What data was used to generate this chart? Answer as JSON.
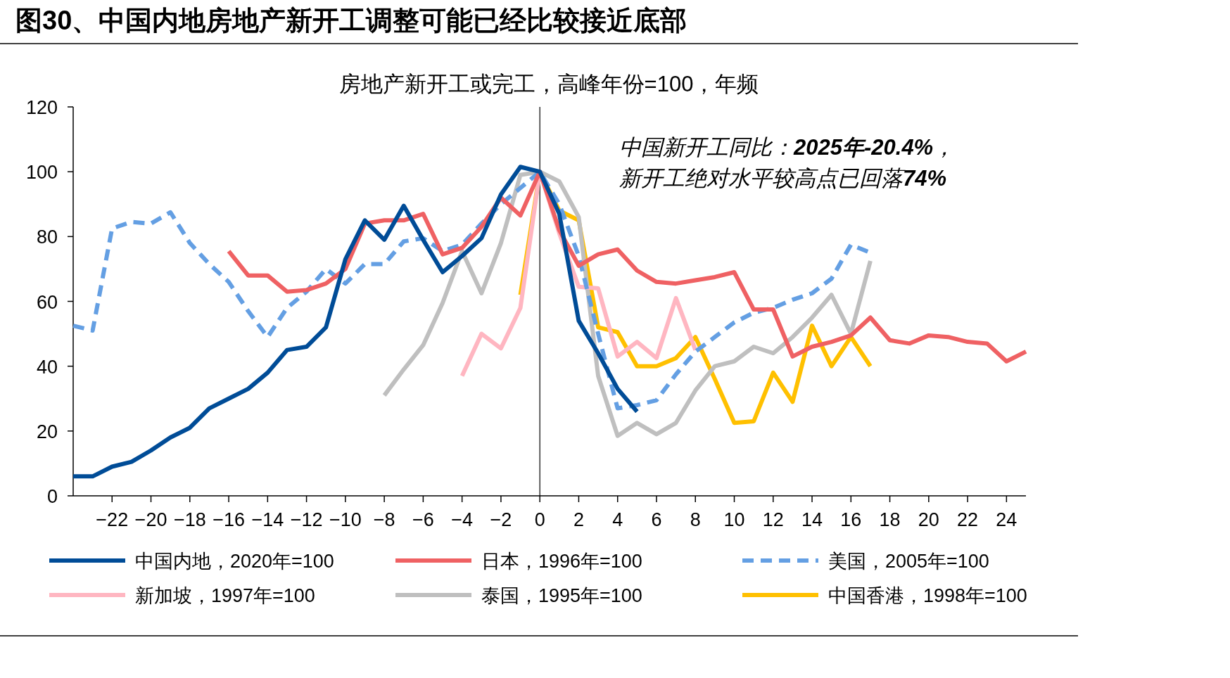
{
  "chart_data": {
    "type": "line",
    "title": "图30、中国内地房地产新开工调整可能已经比较接近底部",
    "subtitle": "房地产新开工或完工，高峰年份=100，年频",
    "annotations": [
      "中国新开工同比：**2025年-20.4%**，",
      "新开工绝对水平较高点已回落**74%**"
    ],
    "xlim": [
      -24,
      25
    ],
    "ylim": [
      0,
      120
    ],
    "yticks": [
      0,
      20,
      40,
      60,
      80,
      100,
      120
    ],
    "xticks": [
      {
        "value": -22,
        "label": "−22"
      },
      {
        "value": -20,
        "label": "−20"
      },
      {
        "value": -18,
        "label": "−18"
      },
      {
        "value": -16,
        "label": "−16"
      },
      {
        "value": -14,
        "label": "−14"
      },
      {
        "value": -12,
        "label": "−12"
      },
      {
        "value": -10,
        "label": "−10"
      },
      {
        "value": -8,
        "label": "−8"
      },
      {
        "value": -6,
        "label": "−6"
      },
      {
        "value": -4,
        "label": "−4"
      },
      {
        "value": -2,
        "label": "−2"
      },
      0,
      2,
      4,
      6,
      8,
      10,
      12,
      14,
      16,
      18,
      20,
      22,
      24
    ],
    "ref_lines": [
      {
        "axis": "x",
        "value": 0,
        "color": "#000000"
      }
    ],
    "legend": "bottom",
    "grid": false,
    "marker": "none",
    "series": [
      {
        "name": "中国内地，2020年=100",
        "color": "#004c97",
        "line_style": "solid",
        "x": [
          -24,
          -23,
          -22,
          -21,
          -20,
          -19,
          -18,
          -17,
          -16,
          -15,
          -14,
          -13,
          -12,
          -11,
          -10,
          -9,
          -8,
          -7,
          -6,
          -5,
          -4,
          -3,
          -2,
          -1,
          0,
          1,
          2,
          3,
          4,
          5
        ],
        "values": [
          6,
          6,
          9,
          10.5,
          14,
          18,
          21,
          27,
          30,
          33,
          38,
          45,
          46,
          52,
          73,
          85,
          79,
          89.5,
          79,
          69,
          74,
          79.5,
          93,
          101.5,
          100,
          87,
          54,
          44,
          33,
          26
        ]
      },
      {
        "name": "日本，1996年=100",
        "color": "#ef6163",
        "line_style": "solid",
        "x": [
          -16,
          -15,
          -14,
          -13,
          -12,
          -11,
          -10,
          -9,
          -8,
          -7,
          -6,
          -5,
          -4,
          -3,
          -2,
          -1,
          0,
          1,
          2,
          3,
          4,
          5,
          6,
          7,
          8,
          9,
          10,
          11,
          12,
          13,
          14,
          15,
          16,
          17,
          18,
          19,
          20,
          21,
          22,
          23,
          24,
          25
        ],
        "values": [
          75.5,
          68,
          68,
          63,
          63.5,
          65.5,
          70,
          84,
          85,
          85,
          87,
          74.5,
          76.5,
          83,
          92,
          86.5,
          100,
          82,
          71,
          74.5,
          76,
          69.5,
          66,
          65.5,
          66.5,
          67.5,
          69,
          57.5,
          57.5,
          43,
          46,
          47.5,
          49.5,
          55,
          48,
          47,
          49.5,
          49,
          47.5,
          47,
          41.5,
          44.5
        ]
      },
      {
        "name": "美国，2005年=100",
        "color": "#649fe3",
        "line_style": "dashed",
        "x": [
          -24,
          -23,
          -22,
          -21,
          -20,
          -19,
          -18,
          -17,
          -16,
          -15,
          -14,
          -13,
          -12,
          -11,
          -10,
          -9,
          -8,
          -7,
          -6,
          -5,
          -4,
          -3,
          -2,
          -1,
          0,
          1,
          2,
          3,
          4,
          5,
          6,
          7,
          8,
          9,
          10,
          11,
          12,
          13,
          14,
          15,
          16,
          17
        ],
        "values": [
          52.5,
          51,
          82.5,
          84.5,
          84,
          87.5,
          78,
          71.5,
          66,
          57,
          49,
          58,
          63,
          70,
          65.5,
          71.5,
          71.5,
          78.5,
          79.5,
          75.5,
          77.5,
          84,
          90,
          95,
          100,
          90,
          74,
          50,
          27,
          28,
          29.5,
          37.5,
          44.5,
          49,
          53.5,
          56.5,
          58,
          60.5,
          62.5,
          67,
          77.5,
          75
        ]
      },
      {
        "name": "新加坡，1997年=100",
        "color": "#ffb6c1",
        "line_style": "solid",
        "x": [
          -4,
          -3,
          -2,
          -1,
          0,
          1,
          2,
          3,
          4,
          5,
          6,
          7,
          8
        ],
        "values": [
          37,
          50,
          45.5,
          58,
          100,
          81,
          64.5,
          64,
          43,
          47.5,
          42.5,
          61,
          45
        ]
      },
      {
        "name": "泰国，1995年=100",
        "color": "#bfbfbf",
        "line_style": "solid",
        "x": [
          -8,
          -7,
          -6,
          -5,
          -4,
          -3,
          -2,
          -1,
          0,
          1,
          2,
          3,
          4,
          5,
          6,
          7,
          8,
          9,
          10,
          11,
          12,
          13,
          14,
          15,
          16,
          17
        ],
        "values": [
          31,
          39,
          46.5,
          59.5,
          75.5,
          62.5,
          78,
          99,
          100,
          97,
          86,
          37,
          18.5,
          22.5,
          19,
          22.5,
          32.5,
          40,
          41.5,
          46,
          44,
          49,
          55,
          62,
          50,
          72.5
        ]
      },
      {
        "name": "中国香港，1998年=100",
        "color": "#ffc000",
        "line_style": "solid",
        "x": [
          -1,
          0,
          1,
          2,
          3,
          4,
          5,
          6,
          7,
          8,
          9,
          10,
          11,
          12,
          13,
          14,
          15,
          16,
          17
        ],
        "values": [
          62,
          100,
          88,
          85,
          52,
          50.5,
          40,
          40,
          42.5,
          49,
          36,
          22.5,
          23,
          38,
          29,
          52.5,
          40,
          49,
          40
        ]
      }
    ]
  }
}
